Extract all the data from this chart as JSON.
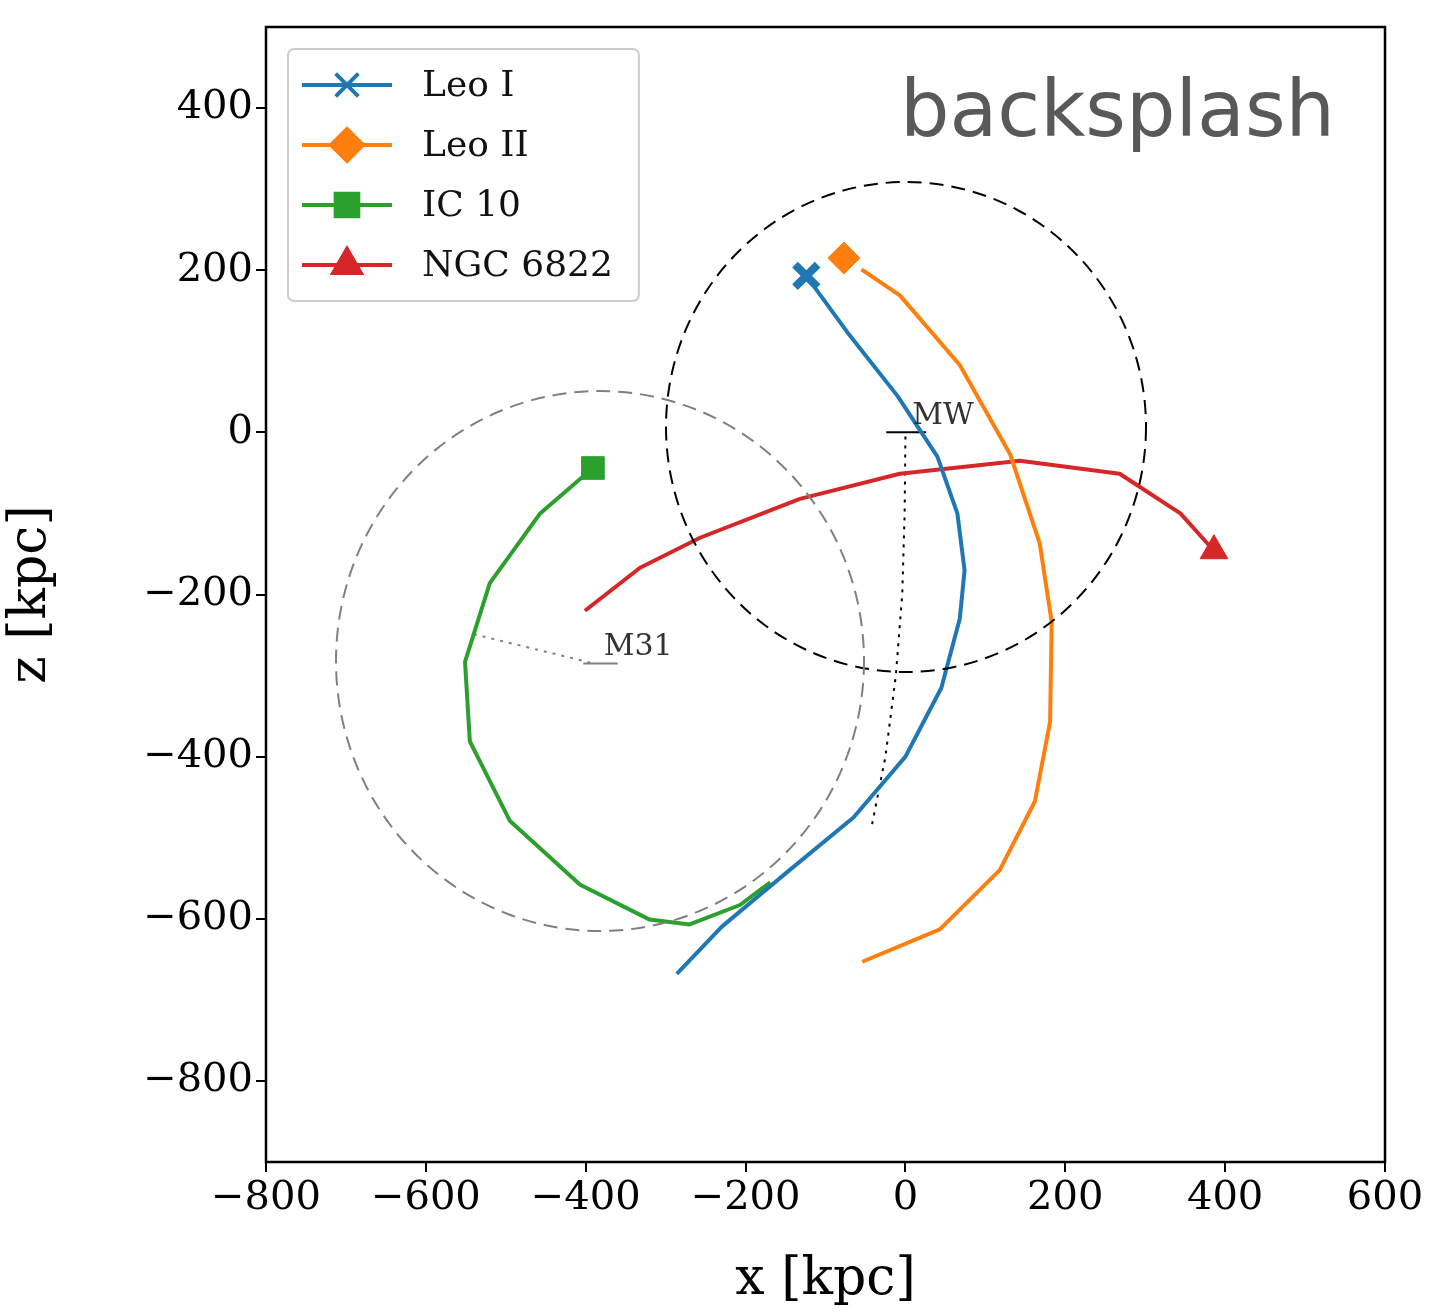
{
  "chart_data": {
    "type": "line",
    "xlabel": "x [kpc]",
    "ylabel": "z [kpc]",
    "xlim": [
      -800,
      600
    ],
    "xticks": [
      -800,
      -600,
      -400,
      -200,
      0,
      200,
      400,
      600
    ],
    "ylim": [
      -900,
      500
    ],
    "yticks": [
      -800,
      -600,
      -400,
      -200,
      0,
      200,
      400
    ],
    "grid": false,
    "legend": "top left",
    "annotations": [
      "backsplash",
      {
        "text": "MW",
        "x": 26,
        "y": 0
      },
      {
        "text": "M31",
        "x": -360,
        "y": -285
      }
    ],
    "series": [
      {
        "name": "Leo I",
        "color": "#1f77b4",
        "x": [
          -124,
          -70,
          -10,
          40,
          65,
          74,
          68,
          45,
          0,
          -65,
          -145,
          -230,
          -286
        ],
        "values": [
          193,
          120,
          45,
          -30,
          -100,
          -170,
          -230,
          -315,
          -400,
          -475,
          -540,
          -610,
          -668
        ]
      },
      {
        "name": "Leo II",
        "color": "#ff7f0e",
        "x": [
          -55,
          -7,
          68,
          131,
          168,
          183,
          181,
          162,
          118,
          43,
          -54
        ],
        "values": [
          201,
          169,
          83,
          -27,
          -137,
          -234,
          -357,
          -455,
          -540,
          -613,
          -653
        ]
      },
      {
        "name": "IC 10",
        "color": "#2ca02c",
        "x": [
          -391,
          -457,
          -520,
          -551,
          -545,
          -495,
          -407,
          -320,
          -270,
          -207,
          -169
        ],
        "values": [
          -44,
          -100,
          -186,
          -283,
          -381,
          -479,
          -558,
          -601,
          -607,
          -583,
          -555
        ]
      },
      {
        "name": "NGC 6822",
        "color": "#d62728",
        "x": [
          386,
          344,
          268,
          143,
          -7,
          -132,
          -257,
          -332,
          -401
        ],
        "values": [
          -146,
          -100,
          -51,
          -35,
          -51,
          -82,
          -130,
          -167,
          -220
        ]
      },
      {
        "type": "scatter",
        "color": "#1f77b4",
        "marker": "cross",
        "x": [
          -124
        ],
        "values": [
          193
        ]
      },
      {
        "type": "scatter",
        "color": "#ff7f0e",
        "marker": "diamond",
        "x": [
          -77
        ],
        "values": [
          215
        ]
      },
      {
        "type": "scatter",
        "color": "#2ca02c",
        "marker": "square",
        "x": [
          -391
        ],
        "values": [
          -44
        ]
      },
      {
        "type": "scatter",
        "color": "#d62728",
        "marker": "triangle",
        "x": [
          386
        ],
        "values": [
          -146
        ]
      },
      {
        "color": "#000000",
        "line_style": "dotted",
        "x": [
          0,
          -1,
          -4,
          -12,
          -25,
          -42
        ],
        "values": [
          -5,
          -100,
          -200,
          -300,
          -400,
          -485
        ]
      },
      {
        "color": "#808080",
        "line_style": "dotted",
        "x": [
          -540,
          -390
        ],
        "values": [
          -249,
          -285
        ]
      },
      {
        "color": "#000000",
        "line_style": "solid",
        "x": [
          -24,
          26
        ],
        "values": [
          0,
          0
        ]
      },
      {
        "color": "#808080",
        "line_style": "solid",
        "x": [
          -403,
          -360
        ],
        "values": [
          -285,
          -285
        ]
      }
    ]
  }
}
